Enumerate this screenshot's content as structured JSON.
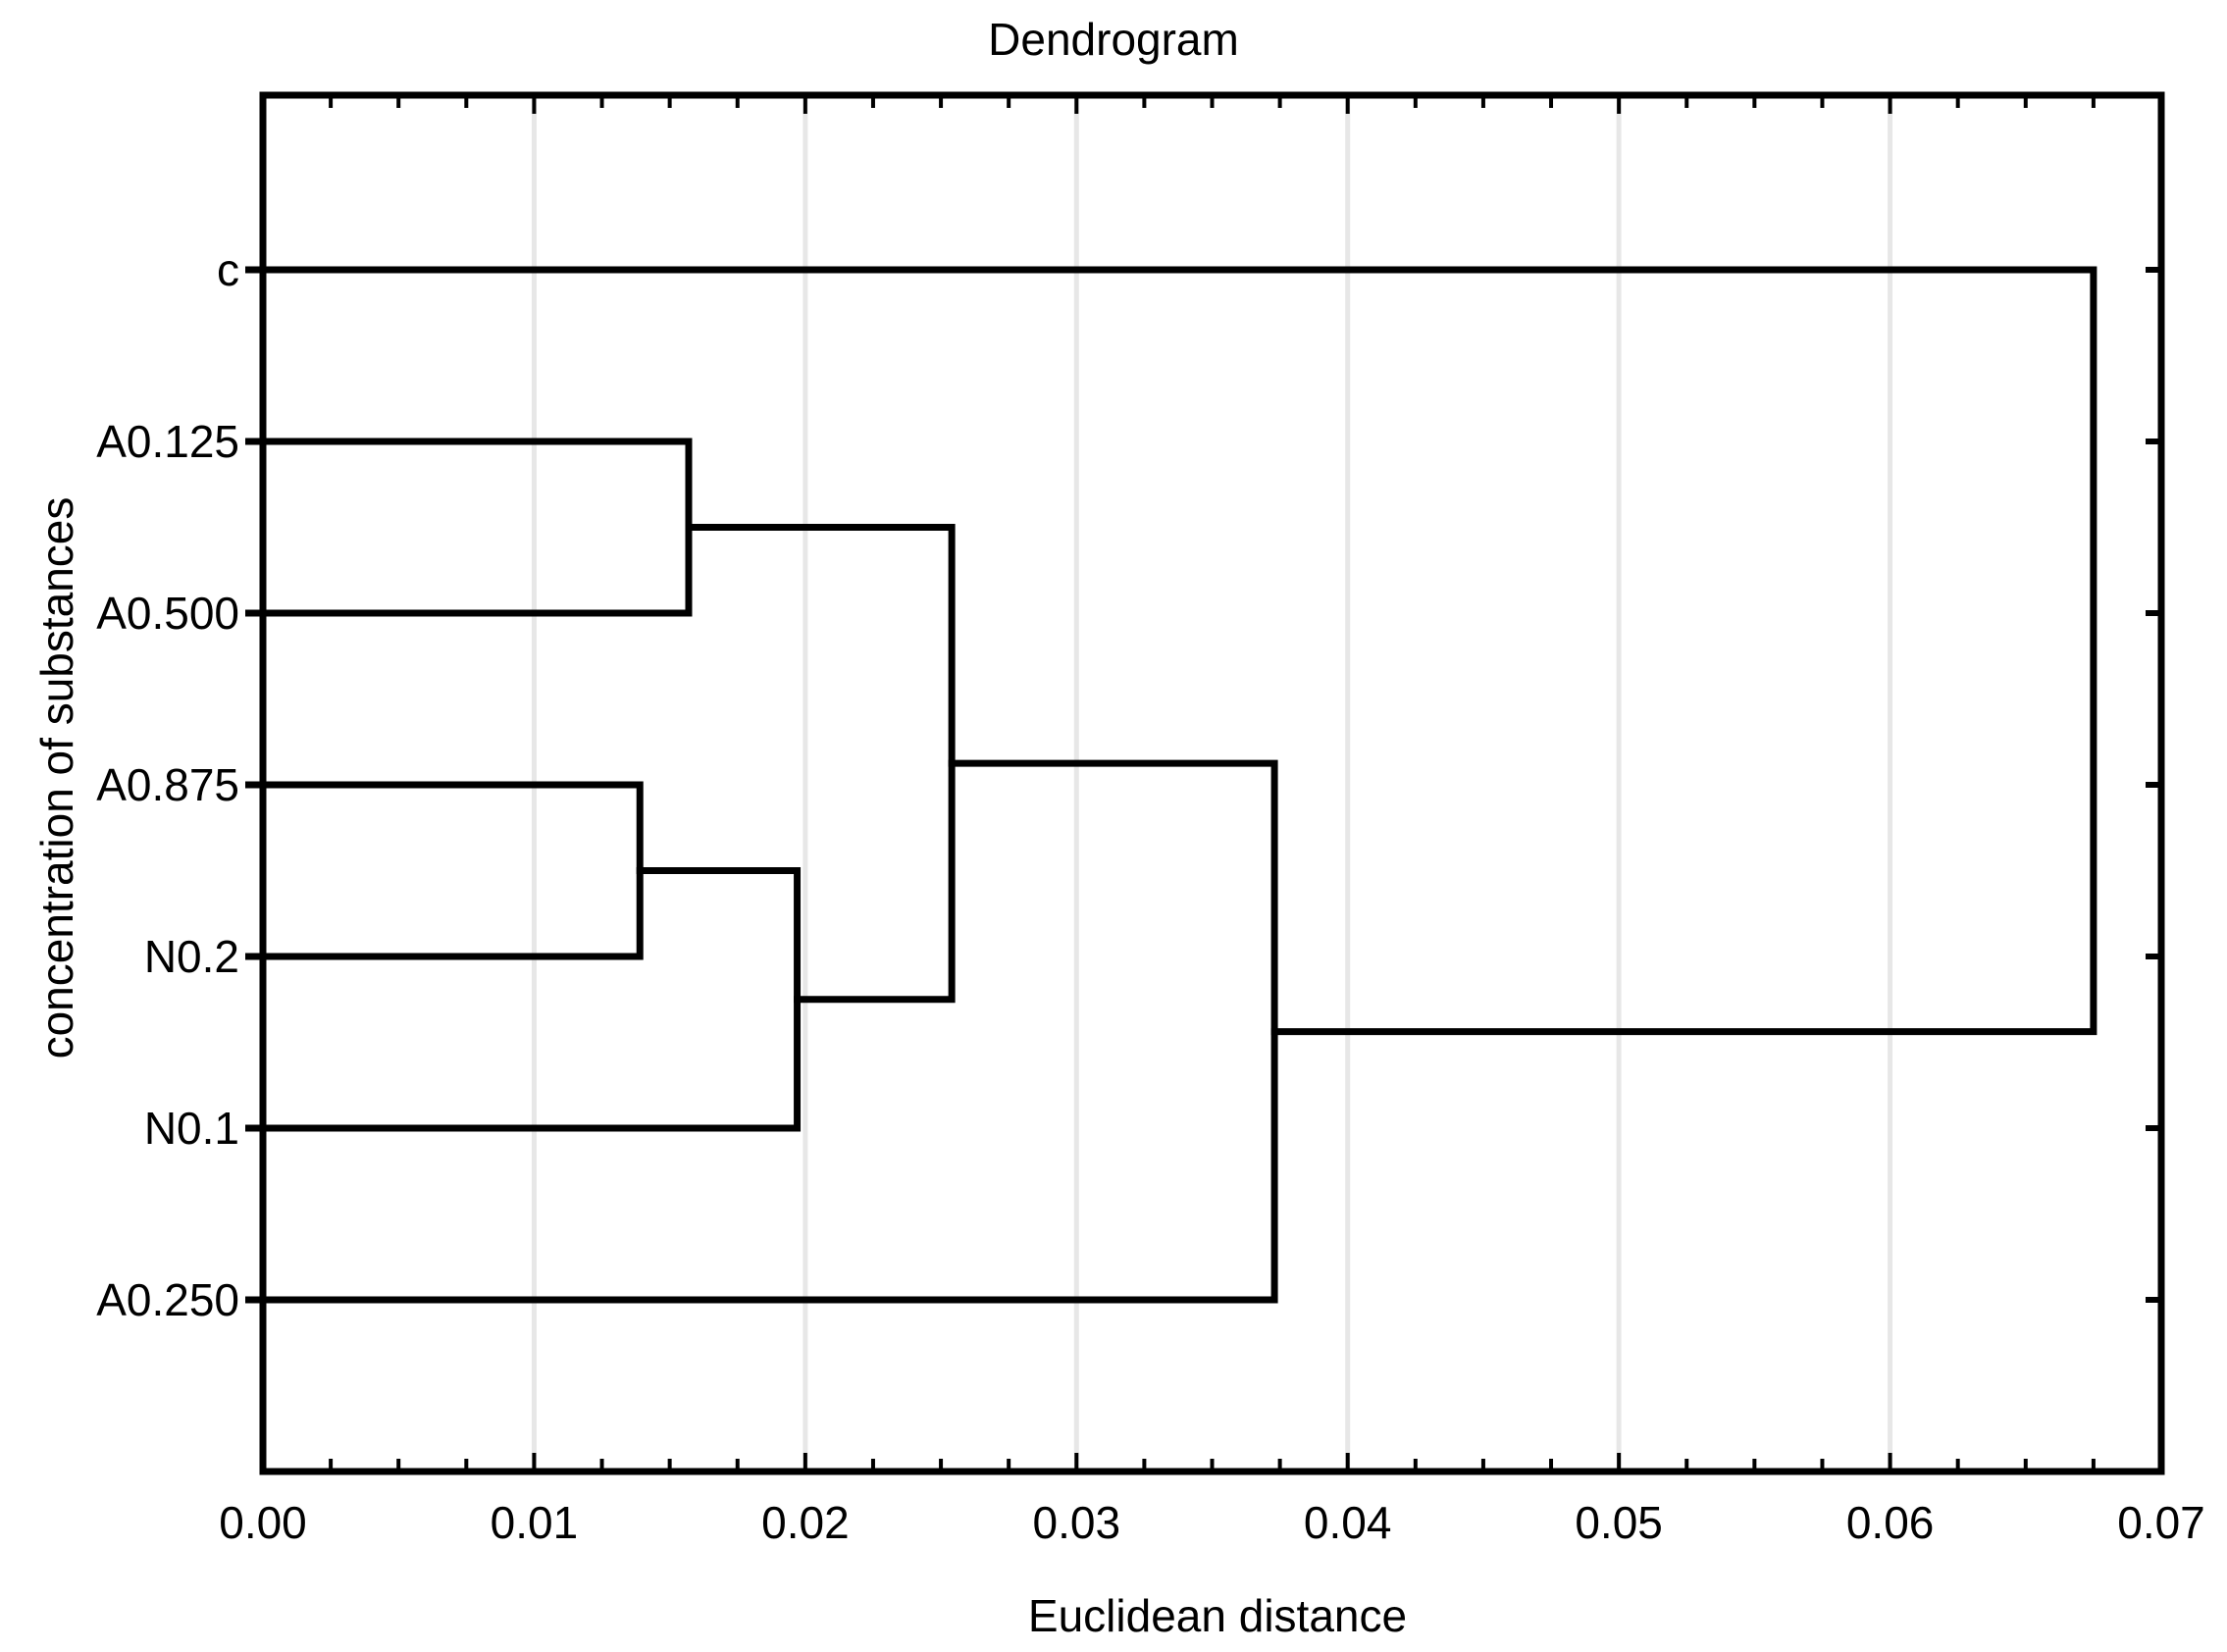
{
  "title": "Dendrogram",
  "axes": {
    "x_label": "Euclidean distance",
    "y_label": "concentration of substances",
    "x_min": 0.0,
    "x_max": 0.07,
    "x_major_step": 0.01,
    "x_minor_step": 0.0025,
    "x_tick_labels": [
      "0.00",
      "0.01",
      "0.02",
      "0.03",
      "0.04",
      "0.05",
      "0.06",
      "0.07"
    ],
    "grid": "vertical major gridlines only"
  },
  "chart_data": {
    "type": "dendrogram",
    "orientation": "horizontal, distances along x-axis, leaves on y-axis",
    "linkage_metric": "Euclidean distance",
    "leaves": [
      "c",
      "A0.125",
      "A0.500",
      "A0.875",
      "N0.2",
      "N0.1",
      "A0.250"
    ],
    "merges": [
      {
        "id": "M2",
        "members": [
          "A0.875",
          "N0.2"
        ],
        "distance": 0.0139
      },
      {
        "id": "M1",
        "members": [
          "A0.125",
          "A0.500"
        ],
        "distance": 0.0157
      },
      {
        "id": "M3",
        "members": [
          "M2",
          "N0.1"
        ],
        "distance": 0.0197
      },
      {
        "id": "M4",
        "members": [
          "M1",
          "M3"
        ],
        "distance": 0.0254
      },
      {
        "id": "M5",
        "members": [
          "M4",
          "A0.250"
        ],
        "distance": 0.0373
      },
      {
        "id": "M6",
        "members": [
          "M5",
          "c"
        ],
        "distance": 0.0675
      }
    ],
    "legend": "none",
    "xlim": [
      0.0,
      0.07
    ]
  },
  "colors": {
    "background": "#ffffff",
    "line": "#000000",
    "text": "#000000",
    "gridline": "#e7e7e7"
  }
}
